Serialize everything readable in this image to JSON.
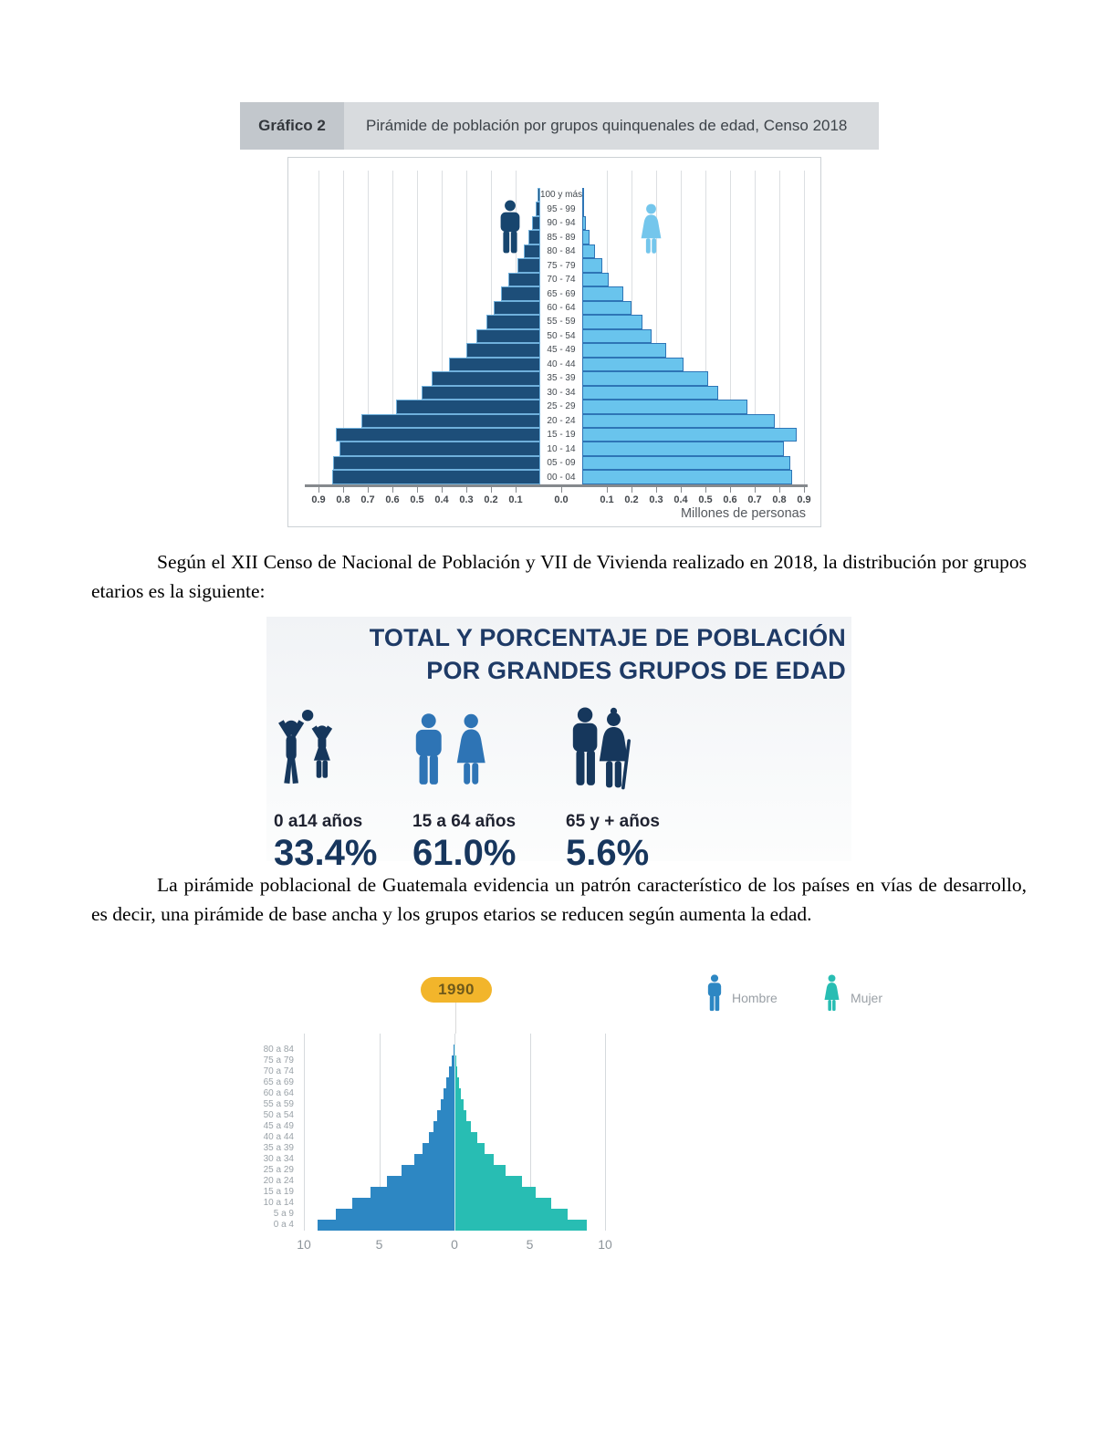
{
  "grafico2_header": {
    "label": "Gráfico 2",
    "title": "Pirámide de población por grupos quinquenales de edad, Censo 2018"
  },
  "paragraphs": {
    "p1": "Según el XII Censo de Nacional de Población y VII de Vivienda realizado en 2018, la distribución por grupos etarios es la siguiente:",
    "p2": "La pirámide poblacional de Guatemala evidencia un patrón característico de los países en vías de desarrollo, es decir, una pirámide de base ancha y los grupos etarios se reducen según aumenta la edad."
  },
  "infographic": {
    "title_lines": [
      "TOTAL Y PORCENTAJE DE POBLACIÓN",
      "POR GRANDES GRUPOS DE EDAD"
    ],
    "groups": [
      {
        "icon": "children-icon",
        "label": "0 a14 años",
        "value": "33.4%"
      },
      {
        "icon": "adults-icon",
        "label": "15 a 64 años",
        "value": "61.0%"
      },
      {
        "icon": "elderly-icon",
        "label": "65 y + años",
        "value": "5.6%"
      }
    ],
    "colors": {
      "dark_navy": "#16375c",
      "medium_blue": "#2e74b5",
      "title_navy": "#1e3a66"
    }
  },
  "chart_data": [
    {
      "type": "bar",
      "subtype": "population-pyramid",
      "title": "Pirámide de población por grupos quinquenales de edad, Censo 2018",
      "xlabel": "Millones de personas",
      "x_max_each_side": 0.9,
      "grid": true,
      "xticks": [
        "0.9",
        "0.8",
        "0.7",
        "0.6",
        "0.5",
        "0.4",
        "0.3",
        "0.2",
        "0.1",
        "0.0",
        "0.1",
        "0.2",
        "0.3",
        "0.4",
        "0.5",
        "0.6",
        "0.7",
        "0.8",
        "0.9"
      ],
      "age_groups": [
        "100 y más",
        "95 - 99",
        "90 - 94",
        "85 - 89",
        "80 - 84",
        "75 - 79",
        "70 - 74",
        "65 - 69",
        "60 - 64",
        "55 - 59",
        "50 - 54",
        "45 - 49",
        "40 - 44",
        "35 - 39",
        "30 - 34",
        "25 - 29",
        "20 - 24",
        "15 - 19",
        "10 - 14",
        "05 - 09",
        "00 - 04"
      ],
      "series": [
        {
          "name": "Hombres",
          "side": "left",
          "color": "#1d4e79",
          "values": [
            0.01,
            0.02,
            0.033,
            0.05,
            0.067,
            0.094,
            0.13,
            0.16,
            0.19,
            0.22,
            0.26,
            0.3,
            0.37,
            0.44,
            0.48,
            0.585,
            0.725,
            0.83,
            0.815,
            0.84,
            0.845
          ]
        },
        {
          "name": "Mujeres",
          "side": "right",
          "color": "#69c4ed",
          "values": [
            0.002,
            0.005,
            0.013,
            0.028,
            0.05,
            0.083,
            0.107,
            0.165,
            0.2,
            0.245,
            0.28,
            0.34,
            0.41,
            0.51,
            0.55,
            0.67,
            0.78,
            0.87,
            0.82,
            0.845,
            0.85
          ]
        }
      ]
    },
    {
      "type": "bar",
      "subtype": "population-pyramid",
      "year_badge": "1990",
      "x_max_each_side": 10,
      "grid": true,
      "xticks": [
        "10",
        "5",
        "0",
        "5",
        "10"
      ],
      "age_groups": [
        "80 a 84",
        "75 a 79",
        "70 a 74",
        "65 a 69",
        "60 a 64",
        "55 a 59",
        "50 a 54",
        "45 a 49",
        "40 a 44",
        "35 a 39",
        "30 a 34",
        "25 a 29",
        "20 a 24",
        "15 a 19",
        "10 a 14",
        "5 a 9",
        "0 a 4"
      ],
      "legend": [
        {
          "label": "Hombre",
          "color": "#2d87c3"
        },
        {
          "label": "Mujer",
          "color": "#28bdb3"
        }
      ],
      "series": [
        {
          "name": "Hombre",
          "side": "left",
          "color": "#2d87c3",
          "values": [
            0.08,
            0.2,
            0.36,
            0.54,
            0.7,
            0.9,
            1.16,
            1.4,
            1.7,
            2.1,
            2.65,
            3.5,
            4.5,
            5.6,
            6.8,
            7.9,
            9.1
          ]
        },
        {
          "name": "Mujer",
          "side": "right",
          "color": "#28bdb3",
          "values": [
            0.04,
            0.1,
            0.2,
            0.32,
            0.45,
            0.6,
            0.8,
            1.1,
            1.5,
            2.0,
            2.6,
            3.4,
            4.5,
            5.4,
            6.4,
            7.5,
            8.8
          ]
        }
      ]
    }
  ]
}
